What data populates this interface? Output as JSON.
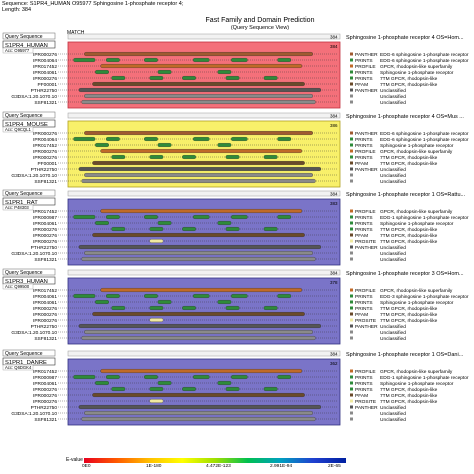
{
  "header": {
    "sequence": "Sequence: S1PR4_HUMAN O95977 Sphingosine 1-phosphate receptor 4;",
    "length": "Length: 384"
  },
  "title": "Fast Family and Domain Prediction",
  "subtitle": "(Query Sequence View)",
  "match_label": "MATCH",
  "query_label": "Query Sequence",
  "acc_prefix": "Acc:",
  "colors": {
    "red": "#f4707a",
    "yellow": "#f8f06a",
    "blue": "#7a74c8",
    "green": "#2e8b3a",
    "orange": "#c06a28"
  },
  "panels": [
    {
      "name": "S1PR4_HUMAN",
      "acc": "O95977",
      "end": "384",
      "top_end": "384",
      "bg": "#f4707a",
      "border": "#c03040",
      "top_desc": "Sphingosine 1-phosphate receptor 4 OS=Hom...",
      "rows": [
        {
          "id": "IPR000276",
          "src": "PANTHER",
          "desc": "EDG-6 sphingosine 1-phosphate receptor",
          "c": "#a05a30",
          "feat": [
            [
              0.06,
              0.9
            ]
          ]
        },
        {
          "id": "IPR004064",
          "src": "PRINTS",
          "desc": "EDG-6 sphingosine 1-phosphate receptor",
          "c": "#2e8b3a",
          "feat": [
            [
              0.02,
              0.1
            ],
            [
              0.14,
              0.19
            ],
            [
              0.28,
              0.33
            ],
            [
              0.46,
              0.52
            ],
            [
              0.6,
              0.66
            ],
            [
              0.77,
              0.82
            ]
          ]
        },
        {
          "id": "IPR017452",
          "src": "PROFILE",
          "desc": "GPCR, rhodopsin-like superfamily",
          "c": "#c06a28",
          "feat": [
            [
              0.12,
              0.86
            ]
          ]
        },
        {
          "id": "IPR004061",
          "src": "PRINTS",
          "desc": "Sphingosine 1-phosphate receptor",
          "c": "#2e8b3a",
          "feat": [
            [
              0.1,
              0.15
            ],
            [
              0.33,
              0.38
            ],
            [
              0.55,
              0.6
            ]
          ]
        },
        {
          "id": "IPR000276",
          "src": "PRINTS",
          "desc": "7TM GPCR, rhodopsin-like",
          "c": "#2e8b3a",
          "feat": [
            [
              0.16,
              0.21
            ],
            [
              0.3,
              0.35
            ],
            [
              0.42,
              0.47
            ],
            [
              0.58,
              0.63
            ],
            [
              0.72,
              0.77
            ]
          ]
        },
        {
          "id": "PF00001",
          "src": "PFAM",
          "desc": "7TM GPCR, rhodopsin-like",
          "c": "#6a4a2a",
          "feat": [
            [
              0.09,
              0.87
            ]
          ]
        },
        {
          "id": "PTHR22750",
          "src": "PANTHER",
          "desc": "Unclassified",
          "c": "#555555",
          "feat": [
            [
              0.04,
              0.93
            ]
          ]
        },
        {
          "id": "G3DSA:1.20.1070.10",
          "src": "",
          "desc": "Unclassified",
          "c": "#8a8a8a",
          "feat": [
            [
              0.06,
              0.9
            ]
          ]
        },
        {
          "id": "SSF81321",
          "src": "",
          "desc": "Unclassified",
          "c": "#8a8a8a",
          "feat": [
            [
              0.05,
              0.91
            ]
          ]
        }
      ]
    },
    {
      "name": "S1PR4_MOUSE",
      "acc": "Q9CQL1",
      "end": "386",
      "top_end": "384",
      "bg": "#f8f06a",
      "border": "#b0a020",
      "top_desc": "Sphingosine 1-phosphate receptor 4 OS=Mus ...",
      "rows": [
        {
          "id": "IPR000276",
          "src": "PANTHER",
          "desc": "EDG-6 sphingosine 1-phosphate receptor",
          "c": "#a05a30",
          "feat": [
            [
              0.06,
              0.9
            ]
          ]
        },
        {
          "id": "IPR004064",
          "src": "PRINTS",
          "desc": "EDG-6 sphingosine 1-phosphate receptor",
          "c": "#2e8b3a",
          "feat": [
            [
              0.02,
              0.1
            ],
            [
              0.14,
              0.19
            ],
            [
              0.28,
              0.33
            ],
            [
              0.46,
              0.52
            ],
            [
              0.6,
              0.66
            ],
            [
              0.77,
              0.82
            ]
          ]
        },
        {
          "id": "IPR017452",
          "src": "PRINTS",
          "desc": "Sphingosine 1-phosphate receptor",
          "c": "#2e8b3a",
          "feat": [
            [
              0.1,
              0.15
            ],
            [
              0.33,
              0.38
            ],
            [
              0.55,
              0.6
            ]
          ]
        },
        {
          "id": "IPR000276",
          "src": "PROFILE",
          "desc": "GPCR, rhodopsin-like superfamily",
          "c": "#c06a28",
          "feat": [
            [
              0.12,
              0.86
            ]
          ]
        },
        {
          "id": "IPR000276",
          "src": "PRINTS",
          "desc": "7TM GPCR, rhodopsin-like",
          "c": "#2e8b3a",
          "feat": [
            [
              0.16,
              0.21
            ],
            [
              0.3,
              0.35
            ],
            [
              0.42,
              0.47
            ],
            [
              0.58,
              0.63
            ],
            [
              0.72,
              0.77
            ]
          ]
        },
        {
          "id": "PF00001",
          "src": "PFAM",
          "desc": "7TM GPCR, rhodopsin-like",
          "c": "#6a4a2a",
          "feat": [
            [
              0.09,
              0.87
            ]
          ]
        },
        {
          "id": "PTHR22750",
          "src": "PANTHER",
          "desc": "Unclassified",
          "c": "#555555",
          "feat": [
            [
              0.04,
              0.93
            ]
          ]
        },
        {
          "id": "G3DSA:1.20.1070.10",
          "src": "",
          "desc": "Unclassified",
          "c": "#8a8a8a",
          "feat": [
            [
              0.06,
              0.9
            ]
          ]
        },
        {
          "id": "SSF81321",
          "src": "",
          "desc": "Unclassified",
          "c": "#8a8a8a",
          "feat": [
            [
              0.05,
              0.91
            ]
          ]
        }
      ]
    },
    {
      "name": "S1PR1_RAT",
      "acc": "P48303",
      "end": "383",
      "top_end": "384",
      "bg": "#7a74c8",
      "border": "#303080",
      "top_desc": "Sphingosine 1-phosphate receptor 1 OS=Rattu...",
      "rows": [
        {
          "id": "IPR017452",
          "src": "PROFILE",
          "desc": "GPCR, rhodopsin-like superfamily",
          "c": "#c06a28",
          "feat": [
            [
              0.12,
              0.86
            ]
          ]
        },
        {
          "id": "IPR000987",
          "src": "PRINTS",
          "desc": "EDG-1 sphingosine 1-phosphate receptor",
          "c": "#2e8b3a",
          "feat": [
            [
              0.02,
              0.1
            ],
            [
              0.14,
              0.19
            ],
            [
              0.28,
              0.33
            ],
            [
              0.46,
              0.52
            ],
            [
              0.6,
              0.66
            ],
            [
              0.77,
              0.82
            ]
          ]
        },
        {
          "id": "IPR004061",
          "src": "PRINTS",
          "desc": "Sphingosine 1-phosphate receptor",
          "c": "#2e8b3a",
          "feat": [
            [
              0.1,
              0.15
            ],
            [
              0.33,
              0.38
            ],
            [
              0.55,
              0.6
            ]
          ]
        },
        {
          "id": "IPR000276",
          "src": "PRINTS",
          "desc": "7TM GPCR, rhodopsin-like",
          "c": "#2e8b3a",
          "feat": [
            [
              0.16,
              0.21
            ],
            [
              0.3,
              0.35
            ],
            [
              0.42,
              0.47
            ],
            [
              0.58,
              0.63
            ],
            [
              0.72,
              0.77
            ]
          ]
        },
        {
          "id": "IPR000276",
          "src": "PFAM",
          "desc": "7TM GPCR, rhodopsin-like",
          "c": "#6a4a2a",
          "feat": [
            [
              0.09,
              0.87
            ]
          ]
        },
        {
          "id": "IPR000276",
          "src": "PROSITE",
          "desc": "7TM GPCR, rhodopsin-like",
          "c": "#f0e8a0",
          "feat": [
            [
              0.3,
              0.35
            ]
          ]
        },
        {
          "id": "PTHR22750",
          "src": "PANTHER",
          "desc": "Unclassified",
          "c": "#555555",
          "feat": [
            [
              0.04,
              0.93
            ]
          ]
        },
        {
          "id": "G3DSA:1.20.1070.10",
          "src": "",
          "desc": "Unclassified",
          "c": "#8a8a8a",
          "feat": [
            [
              0.06,
              0.9
            ]
          ]
        },
        {
          "id": "SSF81321",
          "src": "",
          "desc": "Unclassified",
          "c": "#8a8a8a",
          "feat": [
            [
              0.05,
              0.91
            ]
          ]
        }
      ]
    },
    {
      "name": "S1PR3_HUMAN",
      "acc": "Q99500",
      "end": "378",
      "top_end": "384",
      "bg": "#7a74c8",
      "border": "#303080",
      "top_desc": "Sphingosine 1-phosphate receptor 3 OS=Hom...",
      "rows": [
        {
          "id": "IPR017452",
          "src": "PROFILE",
          "desc": "GPCR, rhodopsin-like superfamily",
          "c": "#c06a28",
          "feat": [
            [
              0.12,
              0.86
            ]
          ]
        },
        {
          "id": "IPR004061",
          "src": "PRINTS",
          "desc": "EDG-3 sphingosine 1-phosphate receptor",
          "c": "#2e8b3a",
          "feat": [
            [
              0.02,
              0.1
            ],
            [
              0.14,
              0.19
            ],
            [
              0.28,
              0.33
            ],
            [
              0.46,
              0.52
            ],
            [
              0.6,
              0.66
            ],
            [
              0.77,
              0.82
            ]
          ]
        },
        {
          "id": "IPR004061",
          "src": "PRINTS",
          "desc": "Sphingosine 1-phosphate receptor",
          "c": "#2e8b3a",
          "feat": [
            [
              0.1,
              0.15
            ],
            [
              0.33,
              0.38
            ],
            [
              0.55,
              0.6
            ]
          ]
        },
        {
          "id": "IPR000276",
          "src": "PRINTS",
          "desc": "7TM GPCR, rhodopsin-like",
          "c": "#2e8b3a",
          "feat": [
            [
              0.16,
              0.21
            ],
            [
              0.3,
              0.35
            ],
            [
              0.42,
              0.47
            ],
            [
              0.58,
              0.63
            ],
            [
              0.72,
              0.77
            ]
          ]
        },
        {
          "id": "IPR000276",
          "src": "PFAM",
          "desc": "7TM GPCR, rhodopsin-like",
          "c": "#6a4a2a",
          "feat": [
            [
              0.09,
              0.87
            ]
          ]
        },
        {
          "id": "IPR000276",
          "src": "PROSITE",
          "desc": "7TM GPCR, rhodopsin-like",
          "c": "#f0e8a0",
          "feat": [
            [
              0.3,
              0.35
            ]
          ]
        },
        {
          "id": "PTHR22750",
          "src": "PANTHER",
          "desc": "Unclassified",
          "c": "#555555",
          "feat": [
            [
              0.04,
              0.93
            ]
          ]
        },
        {
          "id": "G3DSA:1.20.1070.10",
          "src": "",
          "desc": "Unclassified",
          "c": "#8a8a8a",
          "feat": [
            [
              0.06,
              0.9
            ]
          ]
        },
        {
          "id": "SSF81321",
          "src": "",
          "desc": "Unclassified",
          "c": "#8a8a8a",
          "feat": [
            [
              0.05,
              0.91
            ]
          ]
        }
      ]
    },
    {
      "name": "S1PR1_DANRE",
      "acc": "Q6DGK4",
      "end": "362",
      "top_end": "384",
      "bg": "#7a74c8",
      "border": "#303080",
      "top_desc": "Sphingosine 1-phosphate receptor 1 OS=Dani...",
      "rows": [
        {
          "id": "IPR017452",
          "src": "PROFILE",
          "desc": "GPCR, rhodopsin-like superfamily",
          "c": "#c06a28",
          "feat": [
            [
              0.12,
              0.86
            ]
          ]
        },
        {
          "id": "IPR000987",
          "src": "PRINTS",
          "desc": "EDG-1 sphingosine 1-phosphate receptor",
          "c": "#2e8b3a",
          "feat": [
            [
              0.02,
              0.1
            ],
            [
              0.14,
              0.19
            ],
            [
              0.28,
              0.33
            ],
            [
              0.46,
              0.52
            ],
            [
              0.6,
              0.66
            ],
            [
              0.77,
              0.82
            ]
          ]
        },
        {
          "id": "IPR004061",
          "src": "PRINTS",
          "desc": "Sphingosine 1-phosphate receptor",
          "c": "#2e8b3a",
          "feat": [
            [
              0.1,
              0.15
            ],
            [
              0.33,
              0.38
            ],
            [
              0.55,
              0.6
            ]
          ]
        },
        {
          "id": "IPR000276",
          "src": "PRINTS",
          "desc": "7TM GPCR, rhodopsin-like",
          "c": "#2e8b3a",
          "feat": [
            [
              0.16,
              0.21
            ],
            [
              0.3,
              0.35
            ],
            [
              0.42,
              0.47
            ],
            [
              0.58,
              0.63
            ],
            [
              0.72,
              0.77
            ]
          ]
        },
        {
          "id": "IPR000276",
          "src": "PFAM",
          "desc": "7TM GPCR, rhodopsin-like",
          "c": "#6a4a2a",
          "feat": [
            [
              0.09,
              0.87
            ]
          ]
        },
        {
          "id": "IPR000276",
          "src": "PROSITE",
          "desc": "7TM GPCR, rhodopsin-like",
          "c": "#f0e8a0",
          "feat": [
            [
              0.3,
              0.35
            ]
          ]
        },
        {
          "id": "PTHR22750",
          "src": "PANTHER",
          "desc": "Unclassified",
          "c": "#555555",
          "feat": [
            [
              0.04,
              0.93
            ]
          ]
        },
        {
          "id": "G3DSA:1.20.1070.10",
          "src": "",
          "desc": "Unclassified",
          "c": "#8a8a8a",
          "feat": [
            [
              0.06,
              0.9
            ]
          ]
        },
        {
          "id": "SSF81321",
          "src": "",
          "desc": "Unclassified",
          "c": "#8a8a8a",
          "feat": [
            [
              0.05,
              0.91
            ]
          ]
        }
      ]
    }
  ],
  "legend": {
    "label": "E-value",
    "ticks": [
      "0E0",
      "1E-180",
      "4.472E-123",
      "2.991E-94",
      "2E-65"
    ]
  }
}
